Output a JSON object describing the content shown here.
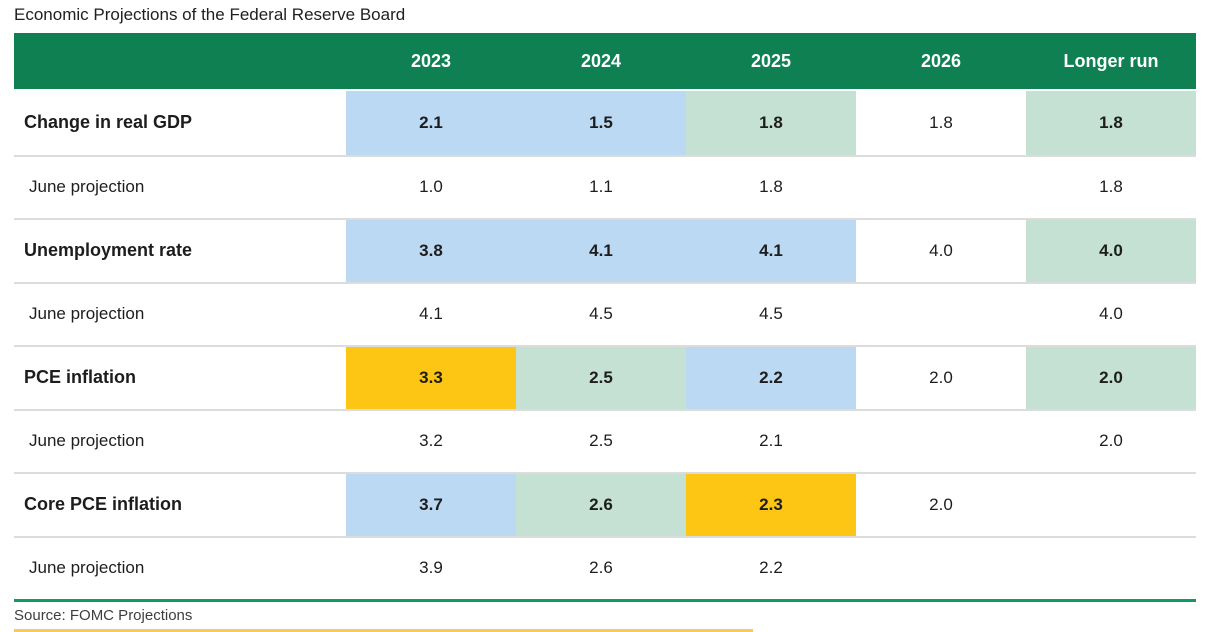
{
  "chart_data": {
    "type": "table",
    "title": "Economic Projections of the Federal Reserve Board",
    "source": "Source: FOMC Projections",
    "columns": [
      "",
      "2023",
      "2024",
      "2025",
      "2026",
      "Longer run"
    ],
    "rows": [
      {
        "label": "Change in real GDP",
        "kind": "category",
        "cells": [
          {
            "text": "2.1",
            "fill": "blue"
          },
          {
            "text": "1.5",
            "fill": "blue"
          },
          {
            "text": "1.8",
            "fill": "green"
          },
          {
            "text": "1.8",
            "fill": "none"
          },
          {
            "text": "1.8",
            "fill": "green"
          }
        ]
      },
      {
        "label": "June projection",
        "kind": "june",
        "cells": [
          {
            "text": "1.0",
            "fill": "none"
          },
          {
            "text": "1.1",
            "fill": "none"
          },
          {
            "text": "1.8",
            "fill": "none"
          },
          {
            "text": "",
            "fill": "none"
          },
          {
            "text": "1.8",
            "fill": "none"
          }
        ]
      },
      {
        "label": "Unemployment rate",
        "kind": "category",
        "cells": [
          {
            "text": "3.8",
            "fill": "blue"
          },
          {
            "text": "4.1",
            "fill": "blue"
          },
          {
            "text": "4.1",
            "fill": "blue"
          },
          {
            "text": "4.0",
            "fill": "none"
          },
          {
            "text": "4.0",
            "fill": "green"
          }
        ]
      },
      {
        "label": "June projection",
        "kind": "june",
        "cells": [
          {
            "text": "4.1",
            "fill": "none"
          },
          {
            "text": "4.5",
            "fill": "none"
          },
          {
            "text": "4.5",
            "fill": "none"
          },
          {
            "text": "",
            "fill": "none"
          },
          {
            "text": "4.0",
            "fill": "none"
          }
        ]
      },
      {
        "label": "PCE inflation",
        "kind": "category",
        "cells": [
          {
            "text": "3.3",
            "fill": "yellow"
          },
          {
            "text": "2.5",
            "fill": "green"
          },
          {
            "text": "2.2",
            "fill": "blue"
          },
          {
            "text": "2.0",
            "fill": "none"
          },
          {
            "text": "2.0",
            "fill": "green"
          }
        ]
      },
      {
        "label": "June projection",
        "kind": "june",
        "cells": [
          {
            "text": "3.2",
            "fill": "none"
          },
          {
            "text": "2.5",
            "fill": "none"
          },
          {
            "text": "2.1",
            "fill": "none"
          },
          {
            "text": "",
            "fill": "none"
          },
          {
            "text": "2.0",
            "fill": "none"
          }
        ]
      },
      {
        "label": "Core PCE inflation",
        "kind": "category",
        "cells": [
          {
            "text": "3.7",
            "fill": "blue"
          },
          {
            "text": "2.6",
            "fill": "green"
          },
          {
            "text": "2.3",
            "fill": "yellow"
          },
          {
            "text": "2.0",
            "fill": "none"
          },
          {
            "text": "",
            "fill": "none"
          }
        ]
      },
      {
        "label": "June projection",
        "kind": "june",
        "cells": [
          {
            "text": "3.9",
            "fill": "none"
          },
          {
            "text": "2.6",
            "fill": "none"
          },
          {
            "text": "2.2",
            "fill": "none"
          },
          {
            "text": "",
            "fill": "none"
          },
          {
            "text": "",
            "fill": "none"
          }
        ]
      }
    ]
  },
  "colors": {
    "header_green": "#0e8052",
    "highlight_blue": "#bcd9f3",
    "highlight_green": "#c4e1d4",
    "highlight_yellow": "#fdc514",
    "row_separator": "#dcdcdc",
    "green_rule": "#109b63",
    "yellow_rule": "#f8c95c"
  }
}
